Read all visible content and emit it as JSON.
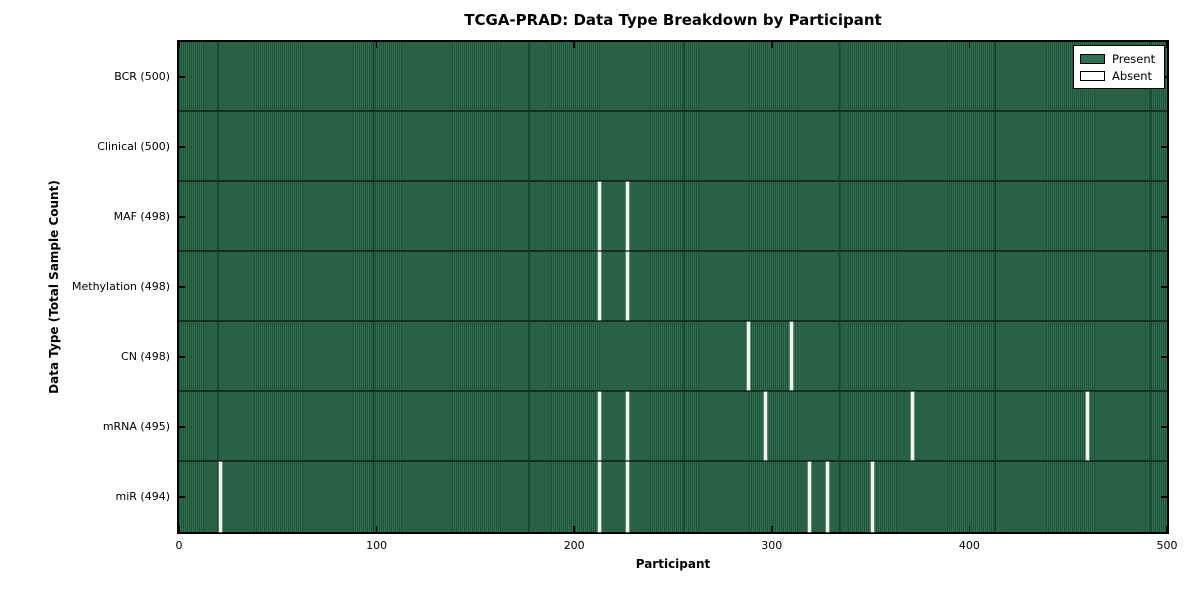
{
  "chart_data": {
    "type": "heatmap",
    "title": "TCGA-PRAD: Data Type Breakdown by Participant",
    "xlabel": "Participant",
    "ylabel": "Data Type (Total Sample Count)",
    "xlim": [
      0,
      500
    ],
    "x_ticks": [
      0,
      100,
      200,
      300,
      400,
      500
    ],
    "n_participants": 500,
    "grid": false,
    "rows": [
      {
        "name": "BCR",
        "label": "BCR (500)",
        "total": 500,
        "absent_participants": []
      },
      {
        "name": "Clinical",
        "label": "Clinical (500)",
        "total": 500,
        "absent_participants": []
      },
      {
        "name": "MAF",
        "label": "MAF (498)",
        "total": 498,
        "absent_participants": [
          213,
          227
        ]
      },
      {
        "name": "Methylation",
        "label": "Methylation (498)",
        "total": 498,
        "absent_participants": [
          213,
          227
        ]
      },
      {
        "name": "CN",
        "label": "CN (498)",
        "total": 498,
        "absent_participants": [
          288,
          310
        ]
      },
      {
        "name": "mRNA",
        "label": "mRNA (495)",
        "total": 495,
        "absent_participants": [
          213,
          227,
          297,
          371,
          460
        ]
      },
      {
        "name": "miR",
        "label": "miR (494)",
        "total": 494,
        "absent_participants": [
          21,
          213,
          227,
          319,
          328,
          351
        ]
      }
    ],
    "legend": {
      "position": "upper right",
      "entries": [
        {
          "label": "Present",
          "color": "#2F7050"
        },
        {
          "label": "Absent",
          "color": "#FFFFFF"
        }
      ]
    },
    "colors": {
      "present": "#2F7050",
      "present_stripe_dark": "#20523A",
      "absent": "#F2F2F2",
      "row_divider": "#16301F",
      "axis": "#000000",
      "background": "#FFFFFF"
    }
  }
}
